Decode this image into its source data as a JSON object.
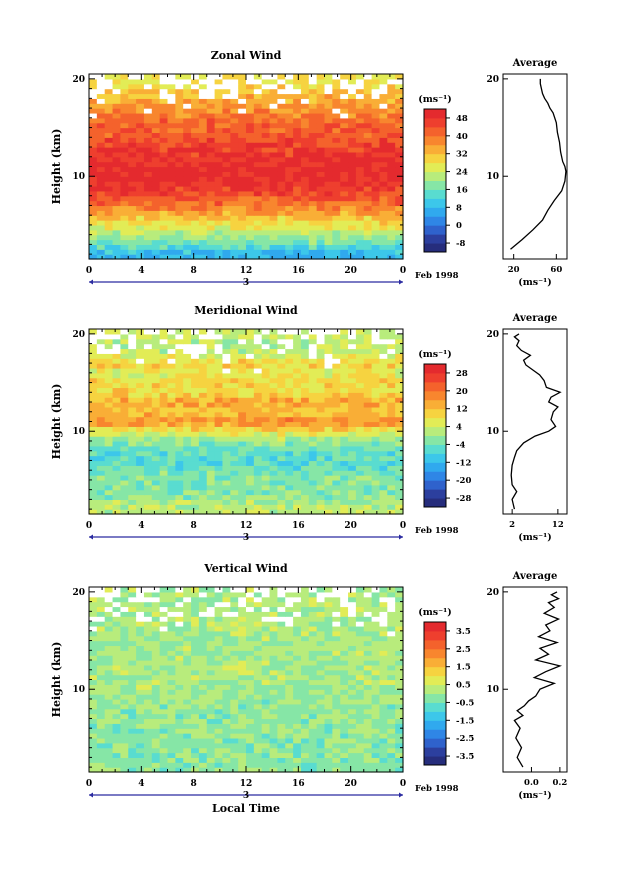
{
  "figure": {
    "x_axis_label": "Local Time",
    "date_label": "3",
    "month_label": "Feb 1998",
    "unit_label": "(ms⁻¹)",
    "average_title": "Average",
    "y_axis_label": "Height (km)"
  },
  "chart_data": [
    {
      "type": "heatmap",
      "title": "Zonal Wind",
      "xlabel": "",
      "ylabel": "Height (km)",
      "x_ticks": [
        "0",
        "4",
        "8",
        "12",
        "16",
        "20",
        "0"
      ],
      "x_range_hours": [
        0,
        24
      ],
      "y_ticks": [
        "10",
        "20"
      ],
      "y_range_km": [
        1.5,
        20.5
      ],
      "colorbar": {
        "unit": "(ms⁻¹)",
        "tick_labels": [
          "48",
          "40",
          "32",
          "24",
          "16",
          "8",
          "0",
          "-8"
        ],
        "range": [
          -12,
          52
        ],
        "colors": [
          "#262d7c",
          "#2c3f9e",
          "#2f62cc",
          "#2f86e6",
          "#30a9ee",
          "#3cc7ea",
          "#59dcd0",
          "#86e6a6",
          "#b8ec7c",
          "#e2ec56",
          "#f6d340",
          "#f9ae36",
          "#f8862e",
          "#f4622c",
          "#ee3f2e",
          "#e42a2e"
        ]
      },
      "profile_by_height_km": [
        {
          "height": 2,
          "value": 8
        },
        {
          "height": 3,
          "value": 15
        },
        {
          "height": 4,
          "value": 21
        },
        {
          "height": 5,
          "value": 27
        },
        {
          "height": 6,
          "value": 33
        },
        {
          "height": 7,
          "value": 39
        },
        {
          "height": 8,
          "value": 44
        },
        {
          "height": 9,
          "value": 48
        },
        {
          "height": 10,
          "value": 50
        },
        {
          "height": 11,
          "value": 50
        },
        {
          "height": 12,
          "value": 48
        },
        {
          "height": 13,
          "value": 46
        },
        {
          "height": 14,
          "value": 44
        },
        {
          "height": 15,
          "value": 42
        },
        {
          "height": 16,
          "value": 40
        },
        {
          "height": 17,
          "value": 37
        },
        {
          "height": 18,
          "value": 34
        },
        {
          "height": 19,
          "value": 30
        },
        {
          "height": 20,
          "value": 28
        }
      ],
      "average_profile": {
        "title": "Average",
        "xlabel": "(ms⁻¹)",
        "x_ticks": [
          "20",
          "60"
        ],
        "x_range": [
          10,
          70
        ],
        "y_ticks": [
          "10",
          "20"
        ],
        "x": [
          17,
          28,
          38,
          47,
          52,
          58,
          65,
          68,
          69,
          68,
          66,
          64,
          63,
          61,
          60,
          57,
          54,
          52,
          49,
          47,
          45,
          45
        ],
        "y": [
          2.5,
          3.5,
          4.5,
          5.5,
          6.5,
          7.5,
          8.5,
          9.5,
          10.5,
          11.0,
          11.5,
          12.5,
          13.5,
          14.5,
          15.5,
          16.5,
          17.0,
          17.5,
          18.0,
          18.5,
          19.5,
          20.0
        ]
      }
    },
    {
      "type": "heatmap",
      "title": "Meridional Wind",
      "xlabel": "",
      "ylabel": "Height (km)",
      "x_ticks": [
        "0",
        "4",
        "8",
        "12",
        "16",
        "20",
        "0"
      ],
      "x_range_hours": [
        0,
        24
      ],
      "y_ticks": [
        "10",
        "20"
      ],
      "y_range_km": [
        1.5,
        20.5
      ],
      "colorbar": {
        "unit": "(ms⁻¹)",
        "tick_labels": [
          "28",
          "20",
          "12",
          "4",
          "-4",
          "-12",
          "-20",
          "-28"
        ],
        "range": [
          -32,
          32
        ],
        "colors": [
          "#262d7c",
          "#2c3f9e",
          "#2f62cc",
          "#2f86e6",
          "#30a9ee",
          "#3cc7ea",
          "#59dcd0",
          "#86e6a6",
          "#b8ec7c",
          "#e2ec56",
          "#f6d340",
          "#f9ae36",
          "#f8862e",
          "#f4622c",
          "#ee3f2e",
          "#e42a2e"
        ]
      },
      "profile_by_height_km": [
        {
          "height": 2,
          "value": 3
        },
        {
          "height": 3,
          "value": 0
        },
        {
          "height": 4,
          "value": -2
        },
        {
          "height": 5,
          "value": -2
        },
        {
          "height": 6,
          "value": -4
        },
        {
          "height": 7,
          "value": -6
        },
        {
          "height": 8,
          "value": -5
        },
        {
          "height": 9,
          "value": -1
        },
        {
          "height": 10,
          "value": 7
        },
        {
          "height": 11,
          "value": 18
        },
        {
          "height": 12,
          "value": 11
        },
        {
          "height": 13,
          "value": 15
        },
        {
          "height": 14,
          "value": 8
        },
        {
          "height": 15,
          "value": 10
        },
        {
          "height": 16,
          "value": 6
        },
        {
          "height": 17,
          "value": 10
        },
        {
          "height": 18,
          "value": 4
        },
        {
          "height": 19,
          "value": 2
        },
        {
          "height": 20,
          "value": 4
        }
      ],
      "average_profile": {
        "title": "Average",
        "xlabel": "(ms⁻¹)",
        "x_ticks": [
          "2",
          "12"
        ],
        "x_range": [
          0,
          14
        ],
        "y_ticks": [
          "10",
          "20"
        ],
        "x": [
          2.5,
          2.0,
          3.0,
          2.0,
          1.8,
          2.0,
          2.5,
          3.0,
          4.5,
          7.0,
          10.0,
          11.5,
          10.5,
          11.0,
          12.0,
          10.0,
          10.5,
          12.5,
          9.5,
          9.0,
          8.0,
          6.5,
          5.0,
          4.5,
          6.0,
          4.0,
          3.0,
          3.5,
          2.5,
          3.5
        ],
        "y": [
          2.0,
          3.0,
          3.8,
          4.5,
          5.5,
          6.5,
          7.3,
          8.0,
          8.8,
          9.5,
          10.0,
          10.5,
          11.2,
          12.0,
          12.5,
          13.0,
          13.5,
          14.0,
          14.5,
          15.2,
          15.8,
          16.3,
          16.8,
          17.3,
          17.8,
          18.3,
          18.8,
          19.3,
          19.7,
          20.0
        ]
      }
    },
    {
      "type": "heatmap",
      "title": "Vertical Wind",
      "xlabel": "Local Time",
      "ylabel": "Height (km)",
      "x_ticks": [
        "0",
        "4",
        "8",
        "12",
        "16",
        "20",
        "0"
      ],
      "x_range_hours": [
        0,
        24
      ],
      "y_ticks": [
        "10",
        "20"
      ],
      "y_range_km": [
        1.5,
        20.5
      ],
      "colorbar": {
        "unit": "(ms⁻¹)",
        "tick_labels": [
          "3.5",
          "2.5",
          "1.5",
          "0.5",
          "-0.5",
          "-1.5",
          "-2.5",
          "-3.5"
        ],
        "range": [
          -4,
          4
        ],
        "colors": [
          "#262d7c",
          "#2c3f9e",
          "#2f62cc",
          "#2f86e6",
          "#30a9ee",
          "#3cc7ea",
          "#59dcd0",
          "#86e6a6",
          "#b8ec7c",
          "#e2ec56",
          "#f6d340",
          "#f9ae36",
          "#f8862e",
          "#f4622c",
          "#ee3f2e",
          "#e42a2e"
        ]
      },
      "profile_by_height_km": [
        {
          "height": 2,
          "value": -0.2
        },
        {
          "height": 4,
          "value": -0.2
        },
        {
          "height": 6,
          "value": -0.1
        },
        {
          "height": 8,
          "value": -0.1
        },
        {
          "height": 10,
          "value": 0.05
        },
        {
          "height": 12,
          "value": 0.1
        },
        {
          "height": 14,
          "value": 0.1
        },
        {
          "height": 16,
          "value": 0.1
        },
        {
          "height": 18,
          "value": 0.15
        },
        {
          "height": 20,
          "value": 0.15
        }
      ],
      "average_profile": {
        "title": "Average",
        "xlabel": "(ms⁻¹)",
        "x_ticks": [
          "0.0",
          "0.2"
        ],
        "x_range": [
          -0.2,
          0.25
        ],
        "y_ticks": [
          "10",
          "20"
        ],
        "x": [
          -0.06,
          -0.1,
          -0.07,
          -0.11,
          -0.08,
          -0.12,
          -0.06,
          -0.1,
          -0.05,
          -0.02,
          0.03,
          0.06,
          0.16,
          0.02,
          0.1,
          0.2,
          0.03,
          0.12,
          0.06,
          0.18,
          0.05,
          0.13,
          0.1,
          0.19,
          0.09,
          0.16,
          0.12,
          0.19,
          0.14,
          0.18
        ],
        "y": [
          2.0,
          3.0,
          4.0,
          5.0,
          6.0,
          6.8,
          7.3,
          7.8,
          8.3,
          8.8,
          9.3,
          10.0,
          10.6,
          11.2,
          11.8,
          12.4,
          13.0,
          13.6,
          14.2,
          14.8,
          15.4,
          16.0,
          16.6,
          17.2,
          17.8,
          18.4,
          18.9,
          19.3,
          19.7,
          20.0
        ]
      }
    }
  ]
}
